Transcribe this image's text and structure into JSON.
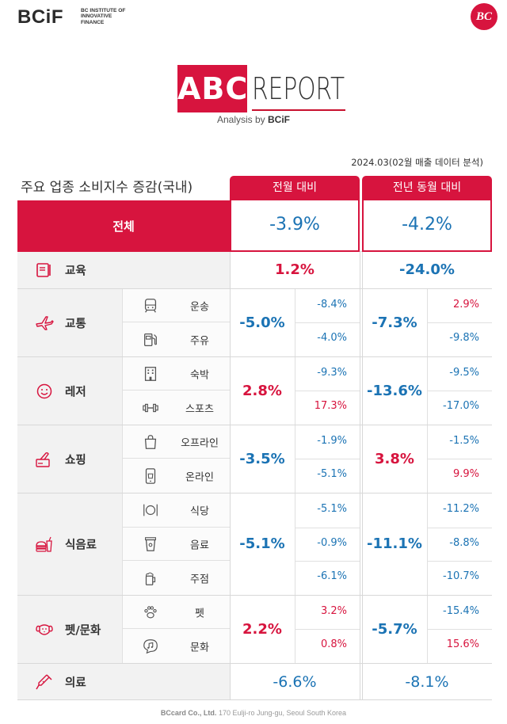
{
  "header": {
    "logo": "BCiF",
    "logo_sub_lines": [
      "BC INSTITUTE OF",
      "INNOVATIVE",
      "FINANCE"
    ],
    "badge": "BC"
  },
  "title": {
    "abc": "ABC",
    "report": "REPORT",
    "analysis_prefix": "Analysis by",
    "analysis_brand": "BCiF"
  },
  "date_note": "2024.03(02월 매출 데이터 분석)",
  "table": {
    "title": "주요 업종 소비지수 증감(국내)",
    "col1": "전월 대비",
    "col2": "전년 동월 대비",
    "total": {
      "label": "전체",
      "mom": "-3.9%",
      "yoy": "-4.2%"
    },
    "education": {
      "label": "교육",
      "mom": "1.2%",
      "yoy": "-24.0%"
    },
    "transport": {
      "label": "교통",
      "mom": "-5.0%",
      "yoy": "-7.3%",
      "subs": [
        {
          "label": "운송",
          "mom": "-8.4%",
          "yoy": "2.9%"
        },
        {
          "label": "주유",
          "mom": "-4.0%",
          "yoy": "-9.8%"
        }
      ]
    },
    "leisure": {
      "label": "레저",
      "mom": "2.8%",
      "yoy": "-13.6%",
      "subs": [
        {
          "label": "숙박",
          "mom": "-9.3%",
          "yoy": "-9.5%"
        },
        {
          "label": "스포츠",
          "mom": "17.3%",
          "yoy": "-17.0%"
        }
      ]
    },
    "shopping": {
      "label": "쇼핑",
      "mom": "-3.5%",
      "yoy": "3.8%",
      "subs": [
        {
          "label": "오프라인",
          "mom": "-1.9%",
          "yoy": "-1.5%"
        },
        {
          "label": "온라인",
          "mom": "-5.1%",
          "yoy": "9.9%"
        }
      ]
    },
    "food": {
      "label": "식음료",
      "mom": "-5.1%",
      "yoy": "-11.1%",
      "subs": [
        {
          "label": "식당",
          "mom": "-5.1%",
          "yoy": "-11.2%"
        },
        {
          "label": "음료",
          "mom": "-0.9%",
          "yoy": "-8.8%"
        },
        {
          "label": "주점",
          "mom": "-6.1%",
          "yoy": "-10.7%"
        }
      ]
    },
    "pet": {
      "label": "펫/문화",
      "mom": "2.2%",
      "yoy": "-5.7%",
      "subs": [
        {
          "label": "펫",
          "mom": "3.2%",
          "yoy": "-15.4%"
        },
        {
          "label": "문화",
          "mom": "0.8%",
          "yoy": "15.6%"
        }
      ]
    },
    "medical": {
      "label": "의료",
      "mom": "-6.6%",
      "yoy": "-8.1%"
    }
  },
  "footer": {
    "company": "BCcard Co., Ltd.",
    "address": "170 Eulji-ro Jung-gu, Seoul South Korea"
  },
  "colors": {
    "accent": "#d7143e",
    "negative": "#1b73b4",
    "positive": "#d7143e"
  }
}
